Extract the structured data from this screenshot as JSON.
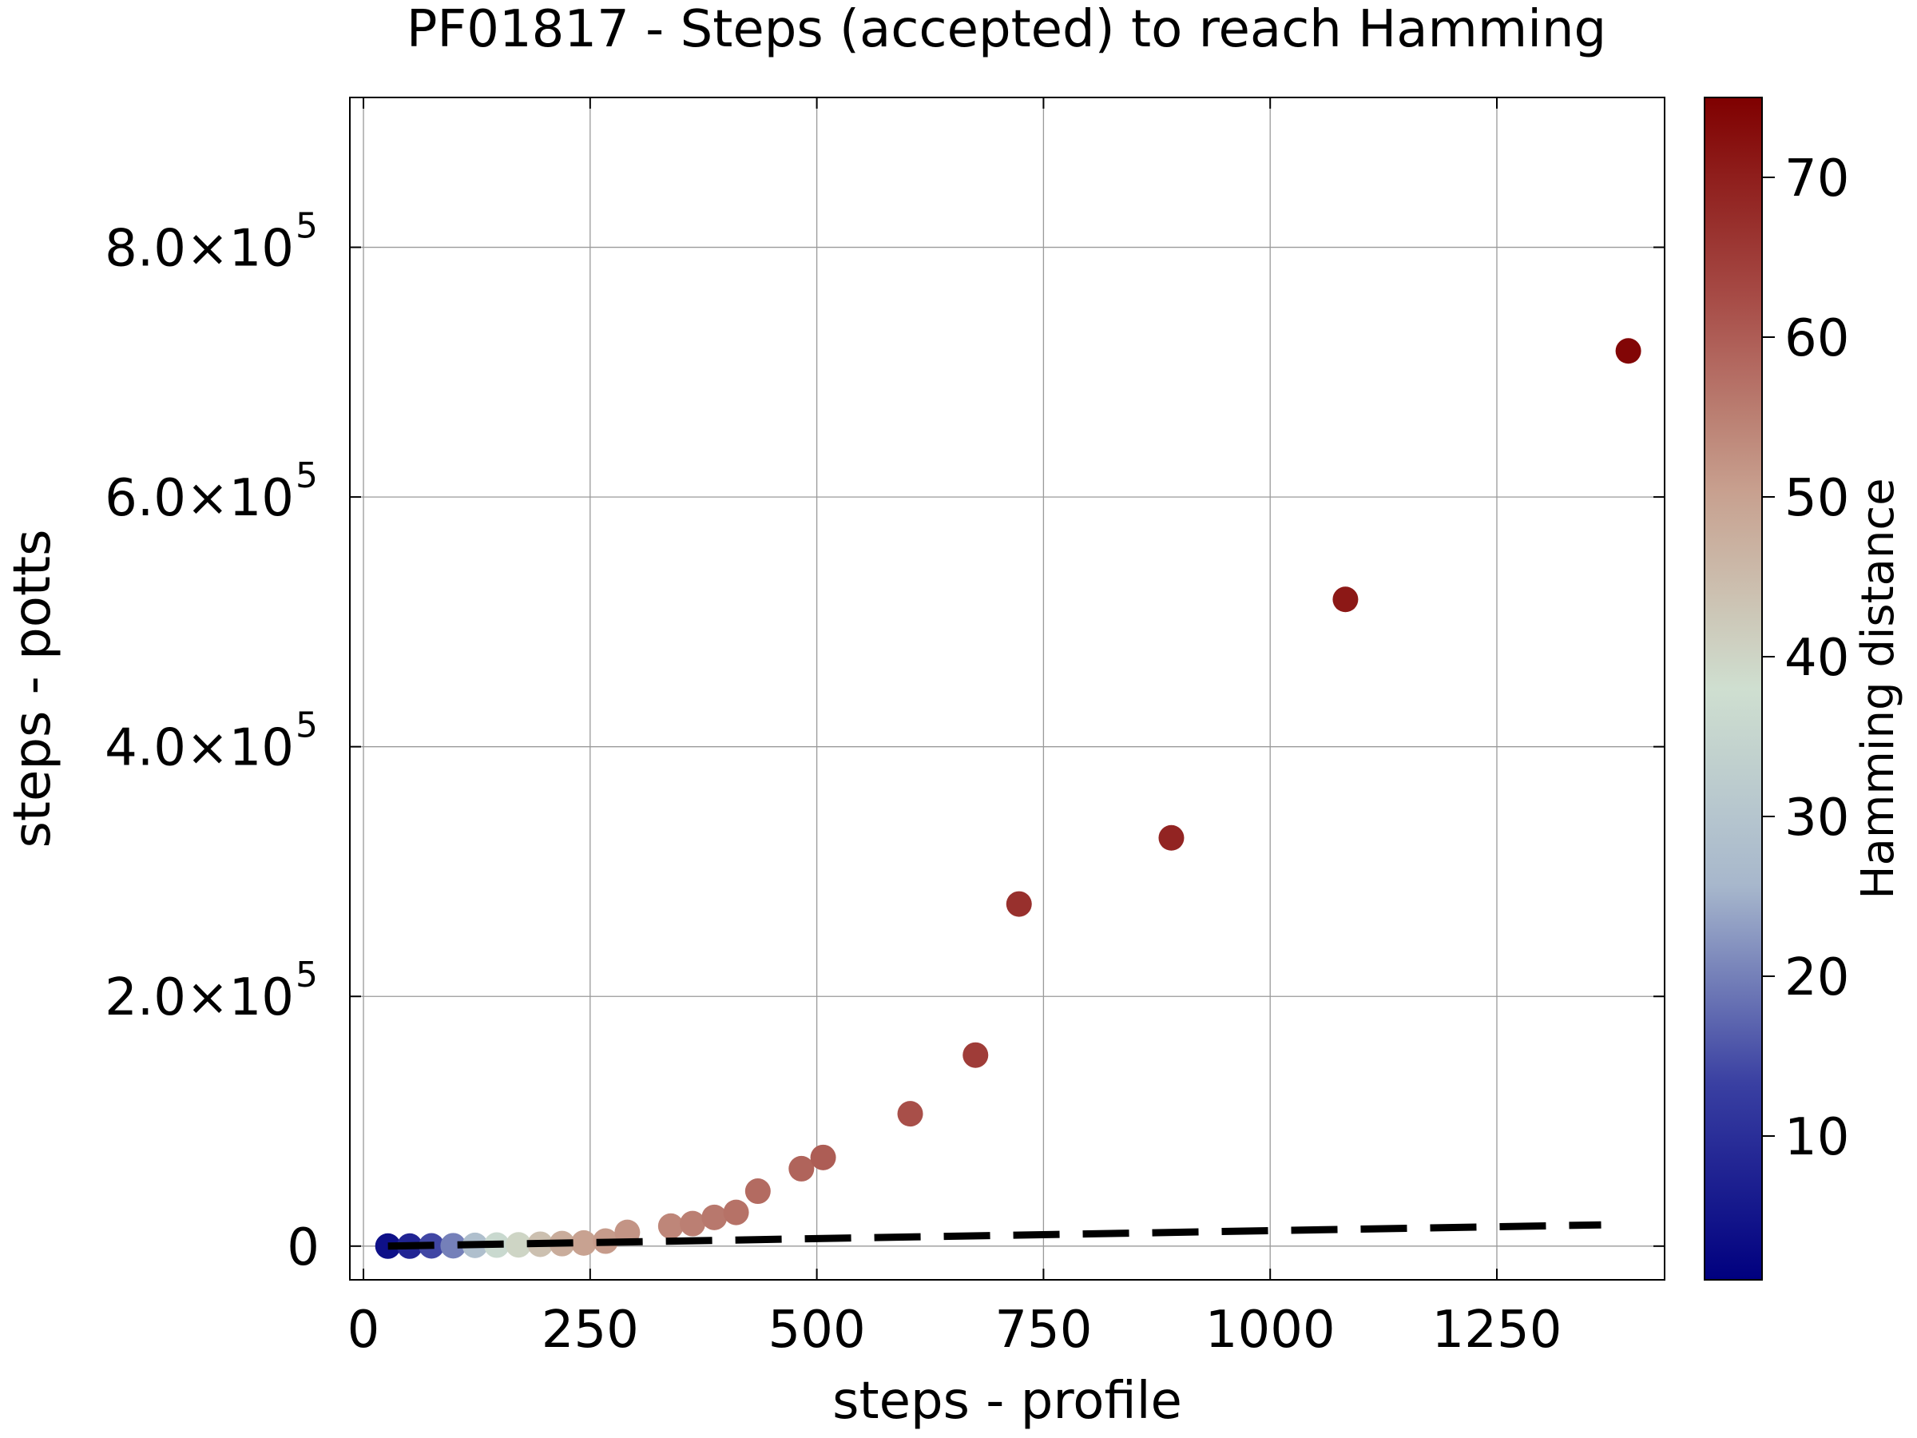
{
  "chart_data": {
    "type": "scatter",
    "title": "PF01817 - Steps (accepted) to reach Hamming",
    "xlabel": "steps - profile",
    "ylabel": "steps - potts",
    "xlim": [
      -15,
      1435
    ],
    "ylim": [
      -27000,
      920000
    ],
    "xticks": [
      0,
      250,
      500,
      750,
      1000,
      1250
    ],
    "yticks": [
      {
        "value": 0,
        "mantissa": "0",
        "exponent": ""
      },
      {
        "value": 200000,
        "mantissa": "2.0×10",
        "exponent": "5"
      },
      {
        "value": 400000,
        "mantissa": "4.0×10",
        "exponent": "5"
      },
      {
        "value": 600000,
        "mantissa": "6.0×10",
        "exponent": "5"
      },
      {
        "value": 800000,
        "mantissa": "8.0×10",
        "exponent": "5"
      }
    ],
    "grid": true,
    "colorbar": {
      "label": "Hamming distance",
      "range": [
        1,
        75
      ],
      "ticks": [
        10,
        20,
        30,
        40,
        50,
        60,
        70
      ],
      "colors": [
        "#00007f",
        "#3a40a2",
        "#a7b7cc",
        "#cfdfd0",
        "#c8a08f",
        "#a64a45",
        "#7f0000"
      ]
    },
    "points": [
      {
        "x": 27,
        "y": 0,
        "hamming": 4
      },
      {
        "x": 51,
        "y": 0,
        "hamming": 8
      },
      {
        "x": 75,
        "y": 200,
        "hamming": 14
      },
      {
        "x": 99,
        "y": 300,
        "hamming": 20
      },
      {
        "x": 123,
        "y": 600,
        "hamming": 28
      },
      {
        "x": 147,
        "y": 800,
        "hamming": 36
      },
      {
        "x": 171,
        "y": 1000,
        "hamming": 40
      },
      {
        "x": 195,
        "y": 1500,
        "hamming": 44
      },
      {
        "x": 219,
        "y": 2000,
        "hamming": 48
      },
      {
        "x": 243,
        "y": 2500,
        "hamming": 50
      },
      {
        "x": 267,
        "y": 4000,
        "hamming": 51
      },
      {
        "x": 291,
        "y": 11000,
        "hamming": 52
      },
      {
        "x": 339,
        "y": 16000,
        "hamming": 54
      },
      {
        "x": 363,
        "y": 18000,
        "hamming": 55
      },
      {
        "x": 387,
        "y": 23000,
        "hamming": 56
      },
      {
        "x": 411,
        "y": 27000,
        "hamming": 57
      },
      {
        "x": 435,
        "y": 44000,
        "hamming": 58
      },
      {
        "x": 483,
        "y": 62000,
        "hamming": 59
      },
      {
        "x": 507,
        "y": 71000,
        "hamming": 60
      },
      {
        "x": 603,
        "y": 106000,
        "hamming": 62
      },
      {
        "x": 675,
        "y": 153000,
        "hamming": 65
      },
      {
        "x": 723,
        "y": 274000,
        "hamming": 67
      },
      {
        "x": 891,
        "y": 327000,
        "hamming": 69
      },
      {
        "x": 1083,
        "y": 518000,
        "hamming": 71
      },
      {
        "x": 1395,
        "y": 717000,
        "hamming": 74
      }
    ],
    "reference_line": {
      "style": "dashed",
      "x": [
        27,
        1365
      ],
      "y": [
        0,
        17000
      ]
    }
  }
}
